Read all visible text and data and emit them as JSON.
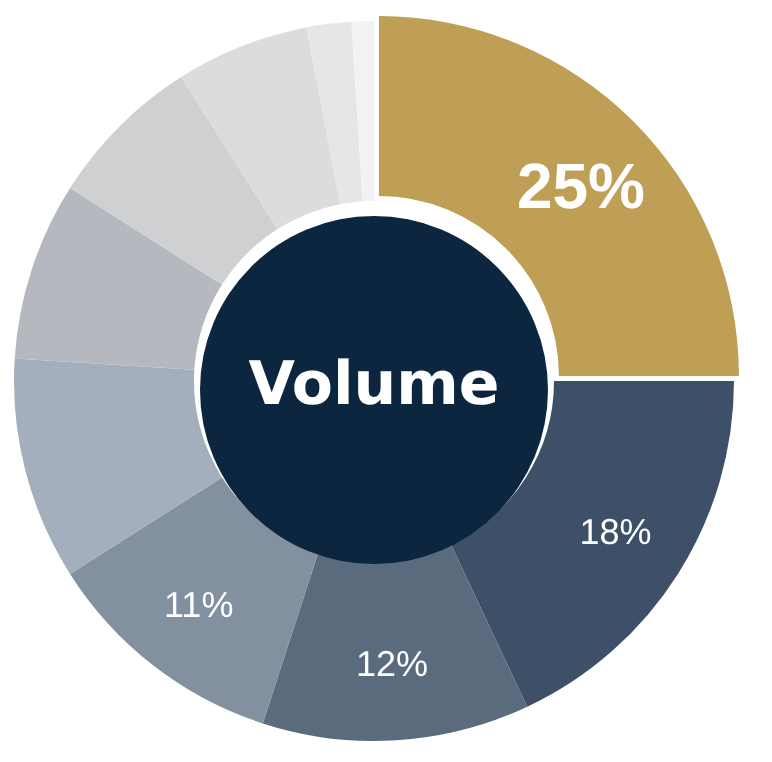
{
  "chart_data": {
    "type": "donut",
    "categories": [
      null,
      null,
      null,
      null,
      null,
      null,
      null,
      null,
      null,
      null
    ],
    "values": [
      25,
      18,
      12,
      11,
      10,
      8,
      7,
      6,
      2,
      1
    ],
    "colors": [
      "#bf9f55",
      "#3d5068",
      "#5a6b7e",
      "#8290a0",
      "#a3afbc",
      "#b5b9bf",
      "#cfd0d2",
      "#dcdcdd",
      "#e6e6e7",
      "#f2f2f3"
    ],
    "value_labels": [
      "25%",
      "18%",
      "12%",
      "11%",
      null,
      null,
      null,
      null,
      null,
      null
    ],
    "annotations": [
      "Volume"
    ],
    "legend": false
  }
}
